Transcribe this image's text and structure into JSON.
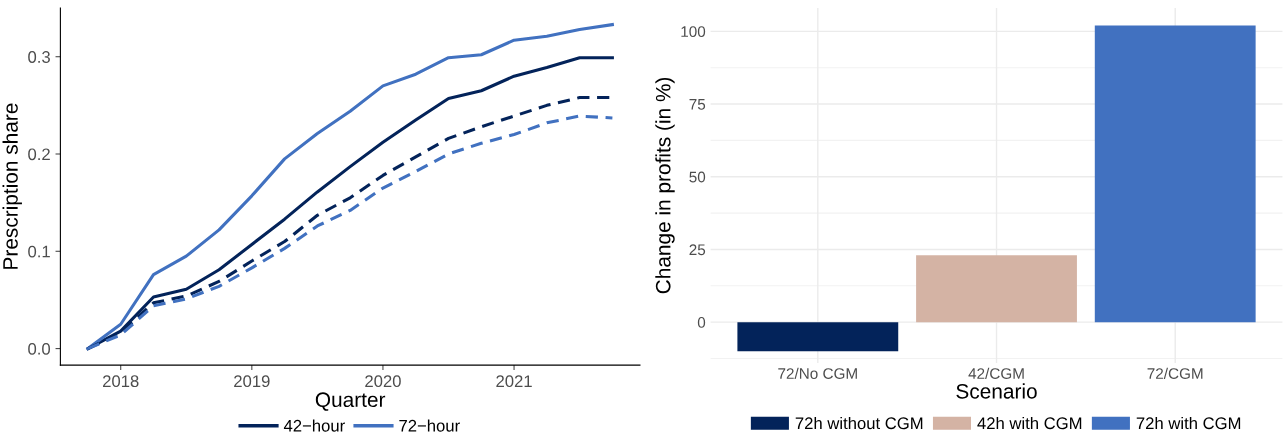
{
  "chart_data": [
    {
      "type": "line",
      "xlabel": "Quarter",
      "ylabel": "Prescription share",
      "x": [
        2017.75,
        2018.0,
        2018.25,
        2018.5,
        2018.75,
        2019.0,
        2019.25,
        2019.5,
        2019.75,
        2020.0,
        2020.25,
        2020.5,
        2020.75,
        2021.0,
        2021.25,
        2021.5,
        2021.75
      ],
      "series": [
        {
          "name": "42−hour",
          "color": "#03235a",
          "line_style": "solid",
          "values": [
            0,
            0.018,
            0.053,
            0.061,
            0.081,
            0.107,
            0.133,
            0.161,
            0.187,
            0.212,
            0.235,
            0.257,
            0.265,
            0.28,
            0.289,
            0.299,
            0.299
          ]
        },
        {
          "name": "72−hour",
          "color": "#4171c0",
          "line_style": "solid",
          "values": [
            0,
            0.025,
            0.076,
            0.095,
            0.122,
            0.157,
            0.195,
            0.221,
            0.244,
            0.27,
            0.282,
            0.299,
            0.302,
            0.317,
            0.321,
            0.328,
            0.333
          ]
        },
        {
          "color": "#03235a",
          "line_style": "dashed",
          "values": [
            0,
            0.016,
            0.047,
            0.054,
            0.069,
            0.09,
            0.11,
            0.137,
            0.155,
            0.178,
            0.197,
            0.216,
            0.228,
            0.239,
            0.25,
            0.258,
            0.258
          ]
        },
        {
          "color": "#4171c0",
          "line_style": "dashed",
          "values": [
            0,
            0.014,
            0.044,
            0.051,
            0.064,
            0.083,
            0.103,
            0.126,
            0.142,
            0.165,
            0.182,
            0.2,
            0.211,
            0.22,
            0.232,
            0.239,
            0.237
          ]
        }
      ],
      "xlim": [
        2017.54,
        2021.96
      ],
      "xticks": [
        2018,
        2019,
        2020,
        2021
      ],
      "ylim": [
        -0.017,
        0.35
      ],
      "yticks": [
        {
          "value": 0,
          "label": "0.0"
        },
        0.1,
        0.2,
        0.3
      ],
      "grid": false,
      "legend": "bottom",
      "marker": "none"
    },
    {
      "type": "bar",
      "xlabel": "Scenario",
      "ylabel": "Change in profits (in %)",
      "categories": [
        "72/No CGM",
        "42/CGM",
        "72/CGM"
      ],
      "series": [
        {
          "name": "72h without CGM",
          "color": "#03235a",
          "values": [
            -10,
            null,
            null
          ]
        },
        {
          "name": "42h with CGM",
          "color": "#d4b3a4",
          "values": [
            null,
            23,
            null
          ]
        },
        {
          "name": "72h with CGM",
          "color": "#4171c0",
          "values": [
            null,
            null,
            102
          ]
        }
      ],
      "ylim": [
        -14,
        108
      ],
      "yticks": [
        0,
        25,
        50,
        75,
        100
      ],
      "grid": true,
      "legend": "bottom"
    }
  ]
}
